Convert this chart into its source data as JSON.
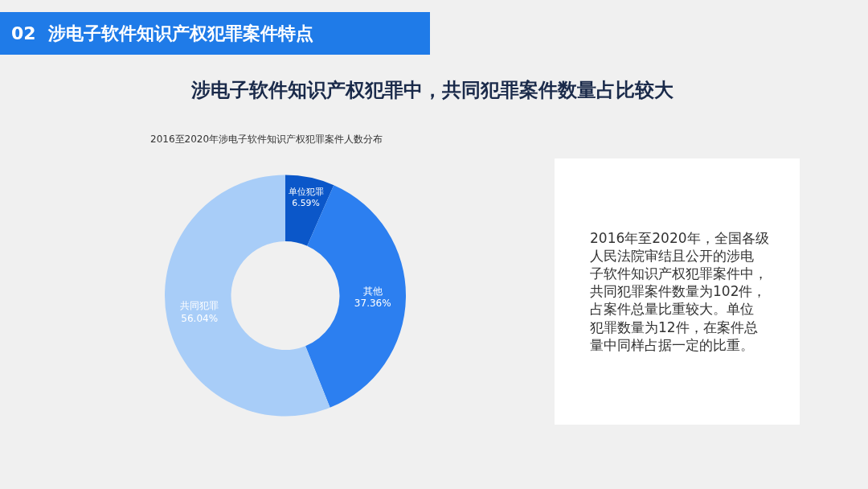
{
  "chart_data": {
    "type": "donut",
    "title": "涉电子软件知识产权犯罪中，共同犯罪案件数量占比较大",
    "subtitle": "2016至2020年涉电子软件知识产权犯罪案件人数分布",
    "categories": [
      "单位犯罪",
      "其他",
      "共同犯罪"
    ],
    "values": [
      6.59,
      37.36,
      56.04
    ],
    "value_labels": [
      "6.59%",
      "37.36%",
      "56.04%"
    ],
    "colors": [
      "#0b57c9",
      "#2c7ff0",
      "#a8cdf8"
    ],
    "annotations": [
      "02  涉电子软件知识产权犯罪案件特点",
      "2016年至2020年，全国各级人民法院审结且公开的涉电子软件知识产权犯罪案件中，共同犯罪案件数量为102件，占案件总量比重较大。单位犯罪数量为12件，在案件总量中同样占据一定的比重。"
    ],
    "legend": false
  }
}
